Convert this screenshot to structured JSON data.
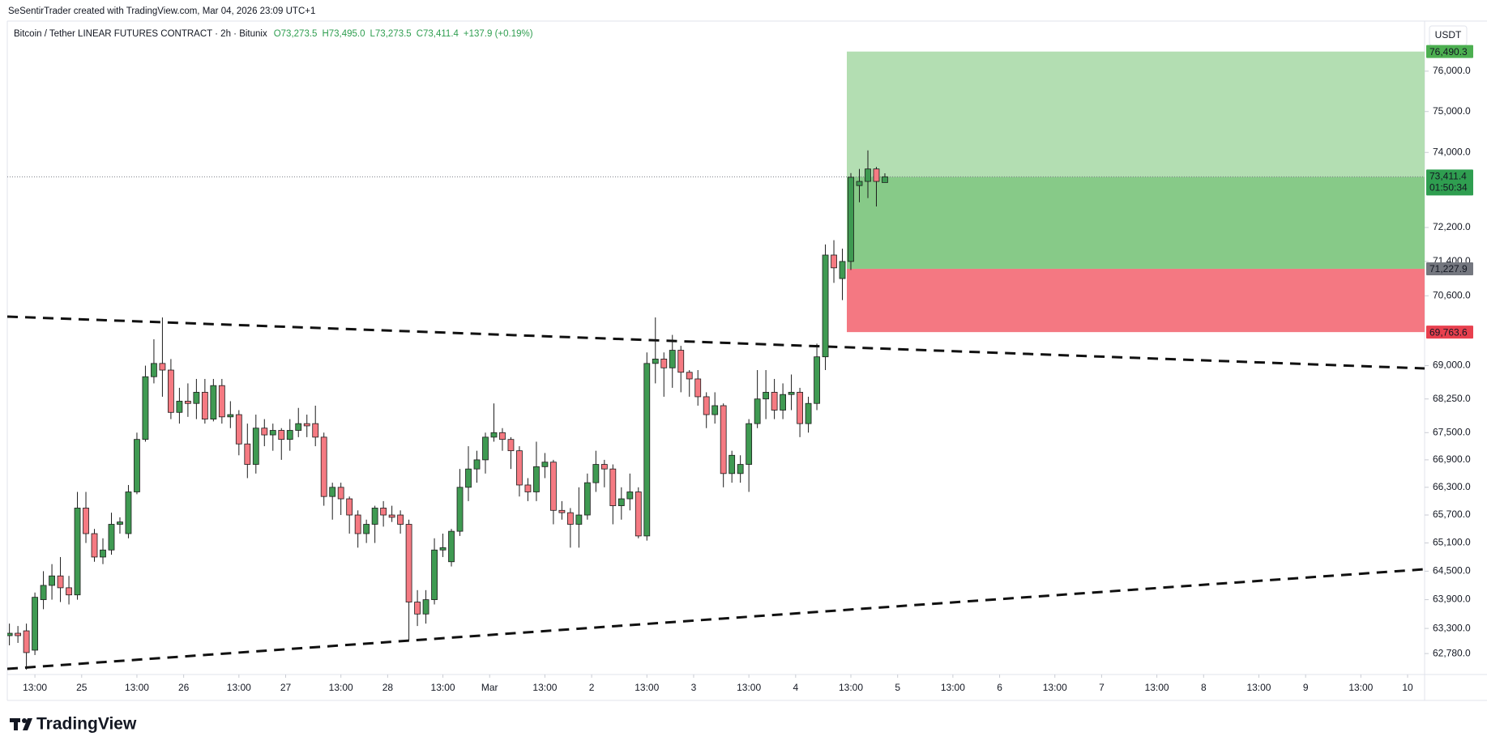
{
  "header": {
    "attribution": "SeSentirTrader created with TradingView.com, Mar 04, 2026 23:09 UTC+1",
    "symbol": "Bitcoin / Tether LINEAR FUTURES CONTRACT · 2h · Bitunix",
    "ohlc": [
      "O73,273.5",
      "H73,495.0",
      "L73,273.5",
      "C73,411.4",
      "+137.9 (+0.19%)"
    ]
  },
  "chart_data": {
    "type": "candlestick",
    "x": [
      -17,
      -15,
      -13,
      -11,
      -9,
      -7,
      -5,
      -3,
      -1,
      1,
      3,
      5,
      7,
      9,
      11,
      13,
      15,
      17,
      19,
      21,
      23,
      25,
      27,
      29,
      31,
      33,
      35,
      37,
      39,
      41,
      43,
      45,
      47,
      49,
      51,
      53,
      55,
      57,
      59,
      61,
      63,
      65,
      67,
      69,
      71,
      73,
      75,
      77,
      79,
      81,
      83,
      85,
      87,
      89,
      91,
      93,
      95,
      97,
      99,
      101,
      103,
      105,
      107,
      109,
      111,
      113,
      115,
      117,
      119,
      121,
      123,
      125,
      127,
      129,
      131,
      133,
      135,
      137,
      139,
      141,
      143,
      145,
      147,
      149,
      151,
      153,
      155,
      157,
      159,
      161,
      163,
      165,
      167,
      169,
      171,
      173,
      175,
      177,
      179,
      181,
      183,
      185,
      187,
      189
    ],
    "open": [
      63150,
      63200,
      63250,
      62850,
      63900,
      64200,
      64400,
      64150,
      64000,
      65850,
      65300,
      64800,
      64950,
      65500,
      65300,
      66200,
      67350,
      68750,
      69050,
      68900,
      67950,
      68200,
      68150,
      68400,
      67800,
      68550,
      67850,
      67900,
      67250,
      66800,
      67600,
      67450,
      67550,
      67350,
      67550,
      67700,
      67700,
      67400,
      66100,
      66300,
      66050,
      65700,
      65300,
      65500,
      65850,
      65700,
      65700,
      65500,
      63850,
      63600,
      63900,
      64950,
      64700,
      65350,
      66300,
      66700,
      66900,
      67400,
      67500,
      67350,
      67100,
      66350,
      66200,
      66750,
      66850,
      65800,
      65750,
      65500,
      65700,
      66400,
      66800,
      66700,
      65900,
      66050,
      66200,
      65250,
      69050,
      69150,
      68950,
      69350,
      68850,
      68700,
      68300,
      67900,
      68100,
      66600,
      66600,
      66800,
      67700,
      68250,
      68400,
      68000,
      68350,
      68400,
      67700,
      68150,
      69200,
      71550,
      71000,
      71400,
      73200,
      73300,
      73600,
      73273.5
    ],
    "high": [
      63400,
      63350,
      63400,
      64050,
      64500,
      64650,
      64800,
      64400,
      66200,
      66200,
      65400,
      65200,
      65750,
      65650,
      66350,
      67500,
      69000,
      69600,
      70100,
      69150,
      68500,
      68600,
      68700,
      68700,
      68700,
      68700,
      68200,
      68000,
      67700,
      67900,
      67800,
      67700,
      67600,
      67800,
      68050,
      67900,
      68100,
      67500,
      66400,
      66400,
      66100,
      65800,
      65600,
      65900,
      66000,
      65900,
      65800,
      65600,
      64100,
      64100,
      65200,
      65300,
      65400,
      66700,
      67200,
      67100,
      67500,
      68150,
      67600,
      67400,
      67200,
      66500,
      67300,
      67050,
      66900,
      66000,
      65850,
      66300,
      66600,
      67100,
      66900,
      66800,
      66300,
      66600,
      66300,
      69300,
      70100,
      69300,
      69700,
      69450,
      68900,
      68900,
      68400,
      68400,
      68150,
      67100,
      67000,
      67800,
      68900,
      68900,
      68700,
      68600,
      68800,
      68500,
      68300,
      69500,
      71800,
      71900,
      71700,
      73500,
      73600,
      74050,
      73650,
      73495.0
    ],
    "low": [
      62950,
      63000,
      62450,
      62750,
      63700,
      63900,
      63850,
      63800,
      63900,
      65100,
      64700,
      64650,
      64850,
      65300,
      65200,
      66150,
      67300,
      68600,
      68300,
      67800,
      67700,
      67850,
      67800,
      67700,
      67750,
      67700,
      67600,
      67000,
      66500,
      66600,
      67200,
      67100,
      66900,
      67100,
      67400,
      67400,
      67200,
      65900,
      65600,
      65700,
      65300,
      65000,
      65100,
      65100,
      65450,
      65550,
      65300,
      63050,
      63350,
      63400,
      63800,
      64800,
      64600,
      65250,
      66000,
      66400,
      66600,
      67300,
      67100,
      66700,
      66100,
      66000,
      66000,
      66500,
      65500,
      65600,
      65000,
      65000,
      65600,
      66200,
      66300,
      65500,
      65600,
      65800,
      65200,
      65150,
      68600,
      68300,
      68500,
      68400,
      68300,
      68100,
      67600,
      67700,
      66300,
      66400,
      66400,
      66200,
      67600,
      67800,
      67800,
      67800,
      68000,
      67400,
      67500,
      68000,
      68900,
      70900,
      70500,
      71200,
      72800,
      72900,
      72700,
      73273.5
    ],
    "close": [
      63200,
      63150,
      62800,
      63950,
      64200,
      64400,
      64150,
      64000,
      65850,
      65300,
      64800,
      64950,
      65500,
      65550,
      66200,
      67350,
      68750,
      69050,
      68900,
      67950,
      68200,
      68150,
      68400,
      67800,
      68550,
      67850,
      67900,
      67250,
      66800,
      67600,
      67450,
      67550,
      67350,
      67550,
      67700,
      67650,
      67400,
      66100,
      66300,
      66050,
      65700,
      65300,
      65500,
      65850,
      65700,
      65650,
      65500,
      63850,
      63600,
      63900,
      64950,
      65000,
      65350,
      66300,
      66700,
      66900,
      67400,
      67500,
      67350,
      67100,
      66350,
      66200,
      66750,
      66850,
      65800,
      65750,
      65500,
      65700,
      66400,
      66800,
      66700,
      65900,
      66050,
      66200,
      65250,
      69050,
      69150,
      68950,
      69350,
      68850,
      68700,
      68300,
      67900,
      68100,
      66600,
      67000,
      66800,
      67700,
      68250,
      68400,
      68000,
      68350,
      68400,
      67700,
      68150,
      69200,
      71550,
      71250,
      71400,
      73400,
      73300,
      73600,
      73300,
      73411.4
    ],
    "up_color": "#3f9a52",
    "down_color": "#f57a82",
    "outline_color": "#1c1c1c",
    "xlim": [
      -17.5,
      316
    ],
    "xticks": [
      {
        "value": -11,
        "label": "13:00"
      },
      {
        "value": 0,
        "label": "25"
      },
      {
        "value": 13,
        "label": "13:00"
      },
      {
        "value": 24,
        "label": "26"
      },
      {
        "value": 37,
        "label": "13:00"
      },
      {
        "value": 48,
        "label": "27"
      },
      {
        "value": 61,
        "label": "13:00"
      },
      {
        "value": 72,
        "label": "28"
      },
      {
        "value": 85,
        "label": "13:00"
      },
      {
        "value": 96,
        "label": "Mar"
      },
      {
        "value": 109,
        "label": "13:00"
      },
      {
        "value": 120,
        "label": "2"
      },
      {
        "value": 133,
        "label": "13:00"
      },
      {
        "value": 144,
        "label": "3"
      },
      {
        "value": 157,
        "label": "13:00"
      },
      {
        "value": 168,
        "label": "4"
      },
      {
        "value": 181,
        "label": "13:00"
      },
      {
        "value": 192,
        "label": "5"
      },
      {
        "value": 205,
        "label": "13:00"
      },
      {
        "value": 216,
        "label": "6"
      },
      {
        "value": 229,
        "label": "13:00"
      },
      {
        "value": 240,
        "label": "7"
      },
      {
        "value": 253,
        "label": "13:00"
      },
      {
        "value": 264,
        "label": "8"
      },
      {
        "value": 277,
        "label": "13:00"
      },
      {
        "value": 288,
        "label": "9"
      },
      {
        "value": 301,
        "label": "13:00"
      },
      {
        "value": 312,
        "label": "10"
      }
    ],
    "ylim": [
      62350,
      77260
    ],
    "log_scale": true,
    "grid": false,
    "yticks": [
      {
        "value": 76000,
        "label": "76,000.0"
      },
      {
        "value": 75000,
        "label": "75,000.0"
      },
      {
        "value": 74000,
        "label": "74,000.0"
      },
      {
        "value": 72200,
        "label": "72,200.0"
      },
      {
        "value": 71400,
        "label": "71,400.0"
      },
      {
        "value": 70600,
        "label": "70,600.0"
      },
      {
        "value": 69000,
        "label": "69,000.0"
      },
      {
        "value": 68250,
        "label": "68,250.0"
      },
      {
        "value": 67500,
        "label": "67,500.0"
      },
      {
        "value": 66900,
        "label": "66,900.0"
      },
      {
        "value": 66300,
        "label": "66,300.0"
      },
      {
        "value": 65700,
        "label": "65,700.0"
      },
      {
        "value": 65100,
        "label": "65,100.0"
      },
      {
        "value": 64500,
        "label": "64,500.0"
      },
      {
        "value": 63900,
        "label": "63,900.0"
      },
      {
        "value": 63300,
        "label": "63,300.0"
      },
      {
        "value": 62780,
        "label": "62,780.0"
      }
    ],
    "y_unit": "USDT",
    "last_price": {
      "value": 73411.4,
      "label": "73,411.4",
      "color": "#2f9e50"
    },
    "countdown": "01:50:34",
    "position": {
      "target": {
        "value": 76490.3,
        "label": "76,490.3",
        "color": "#4caf50",
        "zone_color": "#b3deb2"
      },
      "entry": {
        "value": 71227.9,
        "label": "71,227.9",
        "color": "#74777f",
        "zone_color": "#87ca88"
      },
      "stop": {
        "value": 69763.6,
        "label": "69,763.6",
        "color": "#e8404e",
        "zone_color": "#f47882"
      }
    }
  },
  "footer": {
    "logo": "TradingView"
  }
}
